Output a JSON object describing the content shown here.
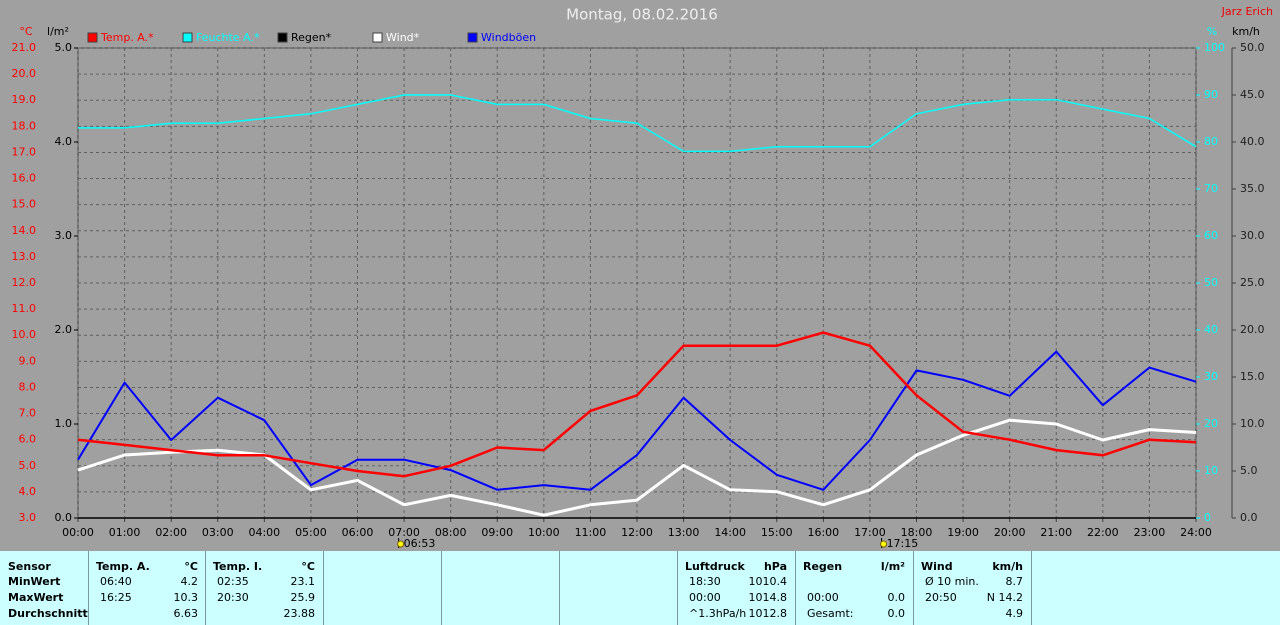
{
  "chart_data": {
    "type": "line",
    "title": "Montag, 08.02.2016",
    "author": "Jarz Erich",
    "y_label": "°C",
    "y2_label": "l/m²",
    "y3_label": "%",
    "y4_label": "km/h",
    "x": [
      0,
      1,
      2,
      3,
      4,
      5,
      6,
      7,
      8,
      9,
      10,
      11,
      12,
      13,
      14,
      15,
      16,
      17,
      18,
      19,
      20,
      21,
      22,
      23,
      24
    ],
    "xlim": [
      0,
      24
    ],
    "xticks": [
      {
        "value": 0,
        "label": "00:00"
      },
      {
        "value": 1,
        "label": "01:00"
      },
      {
        "value": 2,
        "label": "02:00"
      },
      {
        "value": 3,
        "label": "03:00"
      },
      {
        "value": 4,
        "label": "04:00"
      },
      {
        "value": 5,
        "label": "05:00"
      },
      {
        "value": 6,
        "label": "06:00"
      },
      {
        "value": 7,
        "label": "07:00"
      },
      {
        "value": 8,
        "label": "08:00"
      },
      {
        "value": 9,
        "label": "09:00"
      },
      {
        "value": 10,
        "label": "10:00"
      },
      {
        "value": 11,
        "label": "11:00"
      },
      {
        "value": 12,
        "label": "12:00"
      },
      {
        "value": 13,
        "label": "13:00"
      },
      {
        "value": 14,
        "label": "14:00"
      },
      {
        "value": 15,
        "label": "15:00"
      },
      {
        "value": 16,
        "label": "16:00"
      },
      {
        "value": 17,
        "label": "17:00"
      },
      {
        "value": 18,
        "label": "18:00"
      },
      {
        "value": 19,
        "label": "19:00"
      },
      {
        "value": 20,
        "label": "20:00"
      },
      {
        "value": 21,
        "label": "21:00"
      },
      {
        "value": 22,
        "label": "22:00"
      },
      {
        "value": 23,
        "label": "23:00"
      },
      {
        "value": 24,
        "label": "24:00"
      }
    ],
    "ylim": [
      3,
      21
    ],
    "yticks": [
      {
        "value": 3,
        "label": "3.0"
      },
      {
        "value": 4,
        "label": "4.0"
      },
      {
        "value": 5,
        "label": "5.0"
      },
      {
        "value": 6,
        "label": "6.0"
      },
      {
        "value": 7,
        "label": "7.0"
      },
      {
        "value": 8,
        "label": "8.0"
      },
      {
        "value": 9,
        "label": "9.0"
      },
      {
        "value": 10,
        "label": "10.0"
      },
      {
        "value": 11,
        "label": "11.0"
      },
      {
        "value": 12,
        "label": "12.0"
      },
      {
        "value": 13,
        "label": "13.0"
      },
      {
        "value": 14,
        "label": "14.0"
      },
      {
        "value": 15,
        "label": "15.0"
      },
      {
        "value": 16,
        "label": "16.0"
      },
      {
        "value": 17,
        "label": "17.0"
      },
      {
        "value": 18,
        "label": "18.0"
      },
      {
        "value": 19,
        "label": "19.0"
      },
      {
        "value": 20,
        "label": "20.0"
      },
      {
        "value": 21,
        "label": "21.0"
      }
    ],
    "y2lim": [
      0,
      5
    ],
    "y2ticks": [
      {
        "value": 0,
        "label": "0.0"
      },
      {
        "value": 1,
        "label": "1.0"
      },
      {
        "value": 2,
        "label": "2.0"
      },
      {
        "value": 3,
        "label": "3.0"
      },
      {
        "value": 4,
        "label": "4.0"
      },
      {
        "value": 5,
        "label": "5.0"
      }
    ],
    "y3lim": [
      0,
      100
    ],
    "y3ticks": [
      0,
      10,
      20,
      30,
      40,
      50,
      60,
      70,
      80,
      90,
      100
    ],
    "y4lim": [
      0,
      50
    ],
    "y4ticks": [
      {
        "value": 0,
        "label": "0.0"
      },
      {
        "value": 5,
        "label": "5.0"
      },
      {
        "value": 10,
        "label": "10.0"
      },
      {
        "value": 15,
        "label": "15.0"
      },
      {
        "value": 20,
        "label": "20.0"
      },
      {
        "value": 25,
        "label": "25.0"
      },
      {
        "value": 30,
        "label": "30.0"
      },
      {
        "value": 35,
        "label": "35.0"
      },
      {
        "value": 40,
        "label": "40.0"
      },
      {
        "value": 45,
        "label": "45.0"
      },
      {
        "value": 50,
        "label": "50.0"
      }
    ],
    "grid": true,
    "series": [
      {
        "name": "Temp. A.*",
        "color": "#ff0000",
        "axis": "y",
        "values": [
          6.0,
          5.8,
          5.6,
          5.4,
          5.4,
          5.1,
          4.8,
          4.6,
          5.0,
          5.7,
          5.6,
          7.1,
          7.7,
          9.6,
          9.6,
          9.6,
          10.1,
          9.6,
          7.7,
          6.3,
          6.0,
          5.6,
          5.4,
          6.0,
          5.9
        ]
      },
      {
        "name": "Feuchte A.*",
        "color": "#00ffff",
        "axis": "y3",
        "values": [
          83,
          83,
          84,
          84,
          85,
          86,
          88,
          90,
          90,
          88,
          88,
          85,
          84,
          78,
          78,
          79,
          79,
          79,
          86,
          88,
          89,
          89,
          87,
          85,
          79
        ]
      },
      {
        "name": "Regen*",
        "color": "#000000",
        "axis": "y2",
        "values": [
          0,
          0,
          0,
          0,
          0,
          0,
          0,
          0,
          0,
          0,
          0,
          0,
          0,
          0,
          0,
          0,
          0,
          0,
          0,
          0,
          0,
          0,
          0,
          0,
          0
        ]
      },
      {
        "name": "Wind*",
        "color": "#ffffff",
        "axis": "y4",
        "values": [
          5.1,
          6.7,
          7.0,
          7.2,
          6.7,
          3.0,
          4.0,
          1.4,
          2.4,
          1.4,
          0.3,
          1.4,
          1.9,
          5.6,
          3.0,
          2.8,
          1.4,
          3.0,
          6.7,
          8.8,
          10.4,
          10.0,
          8.3,
          9.4,
          9.1
        ]
      },
      {
        "name": "Windböen",
        "color": "#0000ff",
        "axis": "y4",
        "values": [
          6.2,
          14.4,
          8.3,
          12.8,
          10.4,
          3.5,
          6.2,
          6.2,
          5.1,
          3.0,
          3.5,
          3.0,
          6.7,
          12.8,
          8.3,
          4.6,
          3.0,
          8.3,
          15.7,
          14.7,
          13.0,
          17.7,
          12.0,
          16.0,
          14.5
        ]
      }
    ],
    "annotations": [
      {
        "x": 6.883,
        "label": "06:53"
      },
      {
        "x": 17.25,
        "label": "17:15"
      }
    ]
  },
  "summary": {
    "header": "Sensor",
    "row_labels": [
      "MinWert",
      "MaxWert",
      "Durchschnitt"
    ],
    "panels": [
      {
        "title": "Temp. A.",
        "unit": "°C",
        "rows": [
          {
            "time": "06:40",
            "value": "4.2"
          },
          {
            "time": "16:25",
            "value": "10.3"
          },
          {
            "value": "6.63"
          }
        ]
      },
      {
        "title": "Temp. I.",
        "unit": "°C",
        "rows": [
          {
            "time": "02:35",
            "value": "23.1"
          },
          {
            "time": "20:30",
            "value": "25.9"
          },
          {
            "value": "23.88"
          }
        ]
      },
      {
        "title": "Luftdruck",
        "unit": "hPa",
        "rows": [
          {
            "time": "18:30",
            "value": "1010.4"
          },
          {
            "time": "00:00",
            "value": "1014.8"
          },
          {
            "time": "^1.3hPa/h",
            "value": "1012.8"
          }
        ]
      },
      {
        "title": "Regen",
        "unit": "l/m²",
        "rows": [
          null,
          {
            "time": "00:00",
            "value": "0.0"
          },
          {
            "time": "Gesamt:",
            "value": "0.0"
          }
        ]
      },
      {
        "title": "Wind",
        "unit": "km/h",
        "rows": [
          {
            "time": "Ø 10 min.",
            "value": "8.7"
          },
          {
            "time": "20:50",
            "value": "N 14.2"
          },
          {
            "value": "4.9"
          }
        ]
      }
    ]
  }
}
